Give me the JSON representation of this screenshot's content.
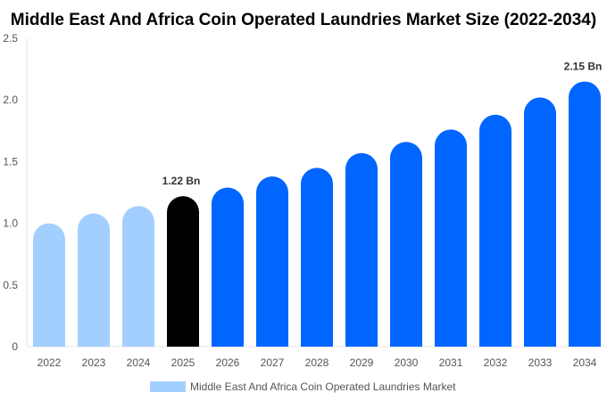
{
  "chart_data": {
    "type": "bar",
    "title": "Middle East And Africa Coin Operated Laundries Market Size (2022-2034)",
    "xlabel": "",
    "ylabel": "",
    "ylim": [
      0,
      2.5
    ],
    "yticks": [
      "0",
      "0.5",
      "1.0",
      "1.5",
      "2.0",
      "2.5"
    ],
    "categories": [
      "2022",
      "2023",
      "2024",
      "2025",
      "2026",
      "2027",
      "2028",
      "2029",
      "2030",
      "2031",
      "2032",
      "2033",
      "2034"
    ],
    "series": [
      {
        "name": "Middle East And Africa Coin Operated Laundries Market",
        "values": [
          1.0,
          1.08,
          1.14,
          1.22,
          1.29,
          1.38,
          1.45,
          1.57,
          1.66,
          1.76,
          1.88,
          2.02,
          2.15
        ]
      }
    ],
    "bar_colors": [
      "#a3cfff",
      "#a3cfff",
      "#a3cfff",
      "#000000",
      "#0066ff",
      "#0066ff",
      "#0066ff",
      "#0066ff",
      "#0066ff",
      "#0066ff",
      "#0066ff",
      "#0066ff",
      "#0066ff"
    ],
    "data_labels": [
      {
        "index": 3,
        "text": "1.22 Bn"
      },
      {
        "index": 12,
        "text": "2.15 Bn"
      }
    ],
    "legend": {
      "placement": "bottom",
      "color": "#a3cfff"
    },
    "grid": false
  }
}
